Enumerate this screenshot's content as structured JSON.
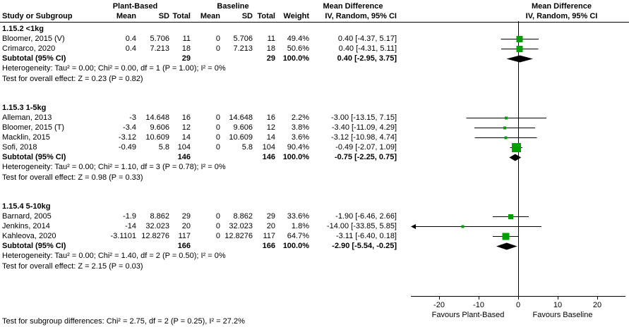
{
  "colors": {
    "marker": "#00a000",
    "diamond": "#000000",
    "axis": "#000000",
    "text": "#000000",
    "bg": "#ffffff"
  },
  "header": {
    "group1": "Plant-Based",
    "group2": "Baseline",
    "md_col": "Mean Difference",
    "md_plot": "Mean Difference",
    "study": "Study or Subgroup",
    "mean": "Mean",
    "sd": "SD",
    "total": "Total",
    "weight": "Weight",
    "ci": "IV, Random, 95% CI",
    "ci_plot": "IV, Random, 95% CI"
  },
  "axis": {
    "ticks": [
      -20,
      -10,
      0,
      10,
      20
    ],
    "favours_left": "Favours Plant-Based",
    "favours_right": "Favours Baseline"
  },
  "footer": "Test for subgroup differences: Chi² = 2.75, df = 2 (P = 0.25), I² = 27.2%",
  "chart_data": {
    "type": "forest",
    "effect_measure": "Mean Difference",
    "model": "IV, Random, 95% CI",
    "x_ticks": [
      -20,
      -10,
      0,
      10,
      20
    ],
    "subgroups": [
      {
        "title": "1.15.2 <1kg",
        "studies": [
          {
            "name": "Bloomer, 2015 (V)",
            "mean1": "0.4",
            "sd1": "5.706",
            "n1": "11",
            "mean2": "0",
            "sd2": "5.706",
            "n2": "11",
            "weight": "49.4%",
            "ci_text": "0.40 [-4.37, 5.17]",
            "est": 0.4,
            "lo": -4.37,
            "hi": 5.17,
            "wpct": 49.4
          },
          {
            "name": "Crimarco, 2020",
            "mean1": "0.4",
            "sd1": "7.213",
            "n1": "18",
            "mean2": "0",
            "sd2": "7.213",
            "n2": "18",
            "weight": "50.6%",
            "ci_text": "0.40 [-4.31, 5.11]",
            "est": 0.4,
            "lo": -4.31,
            "hi": 5.11,
            "wpct": 50.6
          }
        ],
        "subtotal": {
          "label": "Subtotal (95% CI)",
          "n1": "29",
          "n2": "29",
          "weight": "100.0%",
          "ci_text": "0.40 [-2.95, 3.75]",
          "est": 0.4,
          "lo": -2.95,
          "hi": 3.75
        },
        "heterogeneity": "Heterogeneity: Tau² = 0.00; Chi² = 0.00, df = 1 (P = 1.00); I² = 0%",
        "overall": "Test for overall effect: Z = 0.23 (P = 0.82)"
      },
      {
        "title": "1.15.3 1-5kg",
        "studies": [
          {
            "name": "Alleman, 2013",
            "mean1": "-3",
            "sd1": "14.648",
            "n1": "16",
            "mean2": "0",
            "sd2": "14.648",
            "n2": "16",
            "weight": "2.2%",
            "ci_text": "-3.00 [-13.15, 7.15]",
            "est": -3.0,
            "lo": -13.15,
            "hi": 7.15,
            "wpct": 2.2
          },
          {
            "name": "Bloomer, 2015 (T)",
            "mean1": "-3.4",
            "sd1": "9.606",
            "n1": "12",
            "mean2": "0",
            "sd2": "9.606",
            "n2": "12",
            "weight": "3.8%",
            "ci_text": "-3.40 [-11.09, 4.29]",
            "est": -3.4,
            "lo": -11.09,
            "hi": 4.29,
            "wpct": 3.8
          },
          {
            "name": "Macklin, 2015",
            "mean1": "-3.12",
            "sd1": "10.609",
            "n1": "14",
            "mean2": "0",
            "sd2": "10.609",
            "n2": "14",
            "weight": "3.6%",
            "ci_text": "-3.12 [-10.98, 4.74]",
            "est": -3.12,
            "lo": -10.98,
            "hi": 4.74,
            "wpct": 3.6
          },
          {
            "name": "Sofi, 2018",
            "mean1": "-0.49",
            "sd1": "5.8",
            "n1": "104",
            "mean2": "0",
            "sd2": "5.8",
            "n2": "104",
            "weight": "90.4%",
            "ci_text": "-0.49 [-2.07, 1.09]",
            "est": -0.49,
            "lo": -2.07,
            "hi": 1.09,
            "wpct": 90.4
          }
        ],
        "subtotal": {
          "label": "Subtotal (95% CI)",
          "n1": "146",
          "n2": "146",
          "weight": "100.0%",
          "ci_text": "-0.75 [-2.25, 0.75]",
          "est": -0.75,
          "lo": -2.25,
          "hi": 0.75
        },
        "heterogeneity": "Heterogeneity: Tau² = 0.00; Chi² = 1.10, df = 3 (P = 0.78); I² = 0%",
        "overall": "Test for overall effect: Z = 0.98 (P = 0.33)"
      },
      {
        "title": "1.15.4 5-10kg",
        "studies": [
          {
            "name": "Barnard, 2005",
            "mean1": "-1.9",
            "sd1": "8.862",
            "n1": "29",
            "mean2": "0",
            "sd2": "8.862",
            "n2": "29",
            "weight": "33.6%",
            "ci_text": "-1.90 [-6.46, 2.66]",
            "est": -1.9,
            "lo": -6.46,
            "hi": 2.66,
            "wpct": 33.6
          },
          {
            "name": "Jenkins, 2014",
            "mean1": "-14",
            "sd1": "32.023",
            "n1": "20",
            "mean2": "0",
            "sd2": "32.023",
            "n2": "20",
            "weight": "1.8%",
            "ci_text": "-14.00 [-33.85, 5.85]",
            "est": -14.0,
            "lo": -33.85,
            "hi": 5.85,
            "wpct": 1.8
          },
          {
            "name": "Kahleova, 2020",
            "mean1": "-3.1101",
            "sd1": "12.8276",
            "n1": "117",
            "mean2": "0",
            "sd2": "12.8276",
            "n2": "117",
            "weight": "64.7%",
            "ci_text": "-3.11 [-6.40, 0.18]",
            "est": -3.11,
            "lo": -6.4,
            "hi": 0.18,
            "wpct": 64.7
          }
        ],
        "subtotal": {
          "label": "Subtotal (95% CI)",
          "n1": "166",
          "n2": "166",
          "weight": "100.0%",
          "ci_text": "-2.90 [-5.54, -0.25]",
          "est": -2.9,
          "lo": -5.54,
          "hi": -0.25
        },
        "heterogeneity": "Heterogeneity: Tau² = 0.00; Chi² = 1.40, df = 2 (P = 0.50); I² = 0%",
        "overall": "Test for overall effect: Z = 2.15 (P = 0.03)"
      }
    ]
  }
}
